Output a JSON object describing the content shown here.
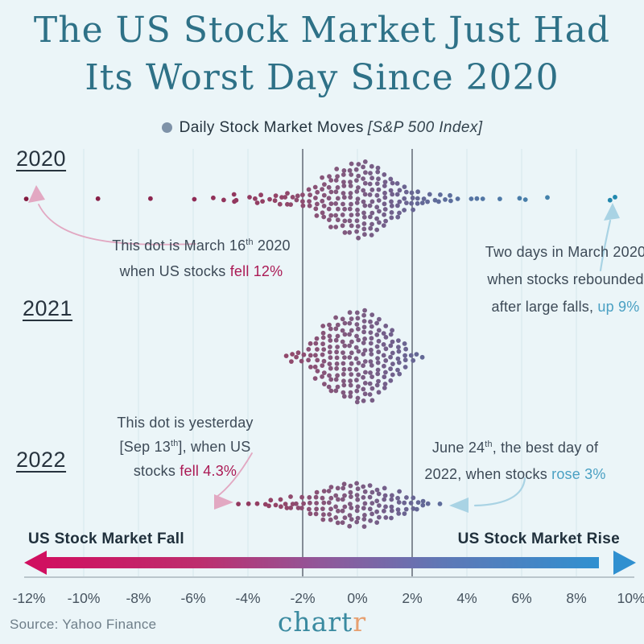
{
  "title": {
    "line1": "The US Stock Market Just Had",
    "line2": "Its Worst Day Since 2020"
  },
  "legend": {
    "label": "Daily Stock Market Moves",
    "sublabel": "[S&P 500 Index]",
    "marker_icon": "dot-icon"
  },
  "rows": [
    {
      "year": "2020"
    },
    {
      "year": "2021"
    },
    {
      "year": "2022"
    }
  ],
  "annotations": {
    "march2020": {
      "l1a": "This dot is March 16",
      "l1sup": "th",
      "l1b": " 2020",
      "l2a": "when US stocks ",
      "l2hl": "fell 12%"
    },
    "rebound2020": {
      "l1": "Two days in March 2020",
      "l2": "when stocks rebounded",
      "l3a": "after large falls, ",
      "l3hl": "up 9%"
    },
    "yesterday2022": {
      "l1": "This dot is yesterday",
      "l2a": "[Sep 13",
      "l2sup": "th",
      "l2b": "], when US",
      "l3a": "stocks ",
      "l3hl": "fell 4.3%"
    },
    "june2022": {
      "l1a": "June 24",
      "l1sup": "th",
      "l1b": ", the best day of",
      "l2a": "2022, when stocks ",
      "l2hl": "rose 3%"
    }
  },
  "axis": {
    "fall_label": "US Stock Market Fall",
    "rise_label": "US Stock Market Rise",
    "ticks": [
      "-12%",
      "-10%",
      "-8%",
      "-6%",
      "-4%",
      "-2%",
      "0%",
      "2%",
      "4%",
      "6%",
      "8%",
      "10%"
    ]
  },
  "footer": {
    "source": "Source: Yahoo Finance",
    "logo_main": "chart",
    "logo_accent": "r"
  },
  "colors": {
    "background": "#ebf5f8",
    "title": "#2e7187",
    "text-dark": "#3d4a57",
    "crimson": "#ab1a55",
    "teal": "#4aa0c3",
    "arrow-pink": "#e2a8c2",
    "arrow-blue": "#a9d3e4",
    "legend-dot": "#7e92a8",
    "gridline-light": "#d9e8ef",
    "gridline-dark": "#59606b",
    "axis-line": "#a9b6bd",
    "tick-text": "#46535f",
    "source-text": "#6e7e89",
    "logo-teal": "#3a8aa0",
    "logo-orange": "#e7a070",
    "bar-left": "#d01060",
    "bar-right": "#3090d0"
  },
  "chart_data": {
    "type": "beeswarm",
    "title": "Daily Stock Market Moves [S&P 500 Index]",
    "unit": "percent daily move",
    "xlim": [
      -12,
      10
    ],
    "x_ticks_pct": [
      -12,
      -10,
      -8,
      -6,
      -4,
      -2,
      0,
      2,
      4,
      6,
      8,
      10
    ],
    "light_gridlines_pct": [
      -10,
      -8,
      -6,
      -4,
      0,
      4,
      6,
      8
    ],
    "highlight_gridlines_pct": [
      -2,
      2
    ],
    "rows": [
      {
        "year": "2020",
        "bins": [
          [
            -12.1,
            1
          ],
          [
            -9.5,
            1
          ],
          [
            -7.6,
            1
          ],
          [
            -6.0,
            1
          ],
          [
            -5.3,
            1
          ],
          [
            -4.9,
            1
          ],
          [
            -4.5,
            2
          ],
          [
            -4.4,
            1
          ],
          [
            -3.9,
            1
          ],
          [
            -3.7,
            2
          ],
          [
            -3.5,
            2
          ],
          [
            -3.2,
            1
          ],
          [
            -3.0,
            2
          ],
          [
            -2.8,
            2
          ],
          [
            -2.6,
            3
          ],
          [
            -2.4,
            2
          ],
          [
            -2.2,
            2
          ],
          [
            -2.0,
            3
          ],
          [
            -1.75,
            4
          ],
          [
            -1.5,
            6
          ],
          [
            -1.25,
            8
          ],
          [
            -1.0,
            10
          ],
          [
            -0.75,
            11
          ],
          [
            -0.5,
            12
          ],
          [
            -0.25,
            13
          ],
          [
            0,
            14
          ],
          [
            0.25,
            14
          ],
          [
            0.5,
            13
          ],
          [
            0.75,
            12
          ],
          [
            1.0,
            10
          ],
          [
            1.25,
            8
          ],
          [
            1.5,
            7
          ],
          [
            1.75,
            5
          ],
          [
            2.0,
            4
          ],
          [
            2.2,
            3
          ],
          [
            2.4,
            2
          ],
          [
            2.6,
            2
          ],
          [
            2.8,
            1
          ],
          [
            3.0,
            2
          ],
          [
            3.2,
            1
          ],
          [
            3.4,
            2
          ],
          [
            3.7,
            1
          ],
          [
            4.2,
            1
          ],
          [
            4.4,
            1
          ],
          [
            4.6,
            1
          ],
          [
            5.2,
            1
          ],
          [
            5.9,
            1
          ],
          [
            6.1,
            1
          ],
          [
            6.9,
            1
          ],
          [
            9.2,
            1
          ],
          [
            9.4,
            1
          ]
        ]
      },
      {
        "year": "2021",
        "bins": [
          [
            -2.6,
            1
          ],
          [
            -2.4,
            2
          ],
          [
            -2.2,
            2
          ],
          [
            -2.0,
            2
          ],
          [
            -1.75,
            5
          ],
          [
            -1.5,
            8
          ],
          [
            -1.25,
            11
          ],
          [
            -1.0,
            13
          ],
          [
            -0.75,
            14
          ],
          [
            -0.5,
            15
          ],
          [
            -0.25,
            16
          ],
          [
            0,
            17
          ],
          [
            0.25,
            17
          ],
          [
            0.5,
            16
          ],
          [
            0.75,
            14
          ],
          [
            1.0,
            12
          ],
          [
            1.25,
            10
          ],
          [
            1.5,
            7
          ],
          [
            1.75,
            5
          ],
          [
            2.0,
            2
          ],
          [
            2.2,
            1
          ],
          [
            2.4,
            1
          ]
        ]
      },
      {
        "year": "2022",
        "bins": [
          [
            -4.35,
            1
          ],
          [
            -4.0,
            1
          ],
          [
            -3.7,
            1
          ],
          [
            -3.4,
            1
          ],
          [
            -3.2,
            2
          ],
          [
            -3.0,
            1
          ],
          [
            -2.8,
            2
          ],
          [
            -2.6,
            2
          ],
          [
            -2.4,
            3
          ],
          [
            -2.2,
            2
          ],
          [
            -2.0,
            3
          ],
          [
            -1.75,
            4
          ],
          [
            -1.5,
            5
          ],
          [
            -1.25,
            6
          ],
          [
            -1.0,
            7
          ],
          [
            -0.75,
            7
          ],
          [
            -0.5,
            8
          ],
          [
            -0.25,
            8
          ],
          [
            0,
            8
          ],
          [
            0.25,
            8
          ],
          [
            0.5,
            7
          ],
          [
            0.75,
            7
          ],
          [
            1.0,
            6
          ],
          [
            1.25,
            5
          ],
          [
            1.5,
            5
          ],
          [
            1.75,
            4
          ],
          [
            2.0,
            3
          ],
          [
            2.2,
            2
          ],
          [
            2.4,
            2
          ],
          [
            2.6,
            1
          ],
          [
            3.05,
            1
          ]
        ]
      }
    ],
    "color_stops": [
      [
        -12,
        "#83193f"
      ],
      [
        -6,
        "#8f2a55"
      ],
      [
        -3,
        "#944467"
      ],
      [
        -1.2,
        "#875579"
      ],
      [
        0,
        "#7d5c82"
      ],
      [
        1.2,
        "#72608c"
      ],
      [
        2.2,
        "#656795"
      ],
      [
        3.5,
        "#5b6f9e"
      ],
      [
        5,
        "#4f78a7"
      ],
      [
        7,
        "#4282ab"
      ],
      [
        8.5,
        "#2f86ac"
      ],
      [
        9.5,
        "#1e88ae"
      ]
    ],
    "notable_points": [
      {
        "year": "2020",
        "value_pct": -12,
        "note": "March 16th 2020, US stocks fell 12%"
      },
      {
        "year": "2020",
        "value_pct": 9,
        "note": "Two days in March 2020 rebounded up 9% after large falls"
      },
      {
        "year": "2022",
        "value_pct": -4.3,
        "note": "Yesterday [Sep 13th], stocks fell 4.3%"
      },
      {
        "year": "2022",
        "value_pct": 3,
        "note": "June 24th, best day of 2022, stocks rose 3%"
      }
    ]
  }
}
